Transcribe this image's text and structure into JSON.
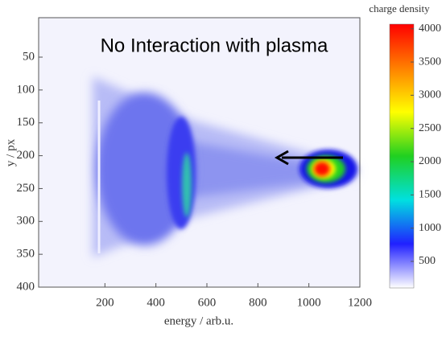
{
  "chart_data": {
    "type": "heatmap",
    "annotation": "No Interaction with plasma",
    "xlabel": "energy / arb.u.",
    "ylabel": "y / px",
    "colorbar_label": "charge density",
    "xlim": [
      -60,
      1200
    ],
    "xticks": [
      200,
      400,
      600,
      800,
      1000,
      1200
    ],
    "ylim": [
      -10,
      400
    ],
    "yticks": [
      50,
      100,
      150,
      200,
      250,
      300,
      350,
      400
    ],
    "clim": [
      100,
      4070
    ],
    "cticks": [
      500,
      1000,
      1500,
      2000,
      2500,
      3000,
      3500,
      4000
    ],
    "colormap": [
      "#ffffff",
      "#2020ff",
      "#00e0e0",
      "#20d020",
      "#ffff00",
      "#ff8000",
      "#ff0000"
    ]
  }
}
